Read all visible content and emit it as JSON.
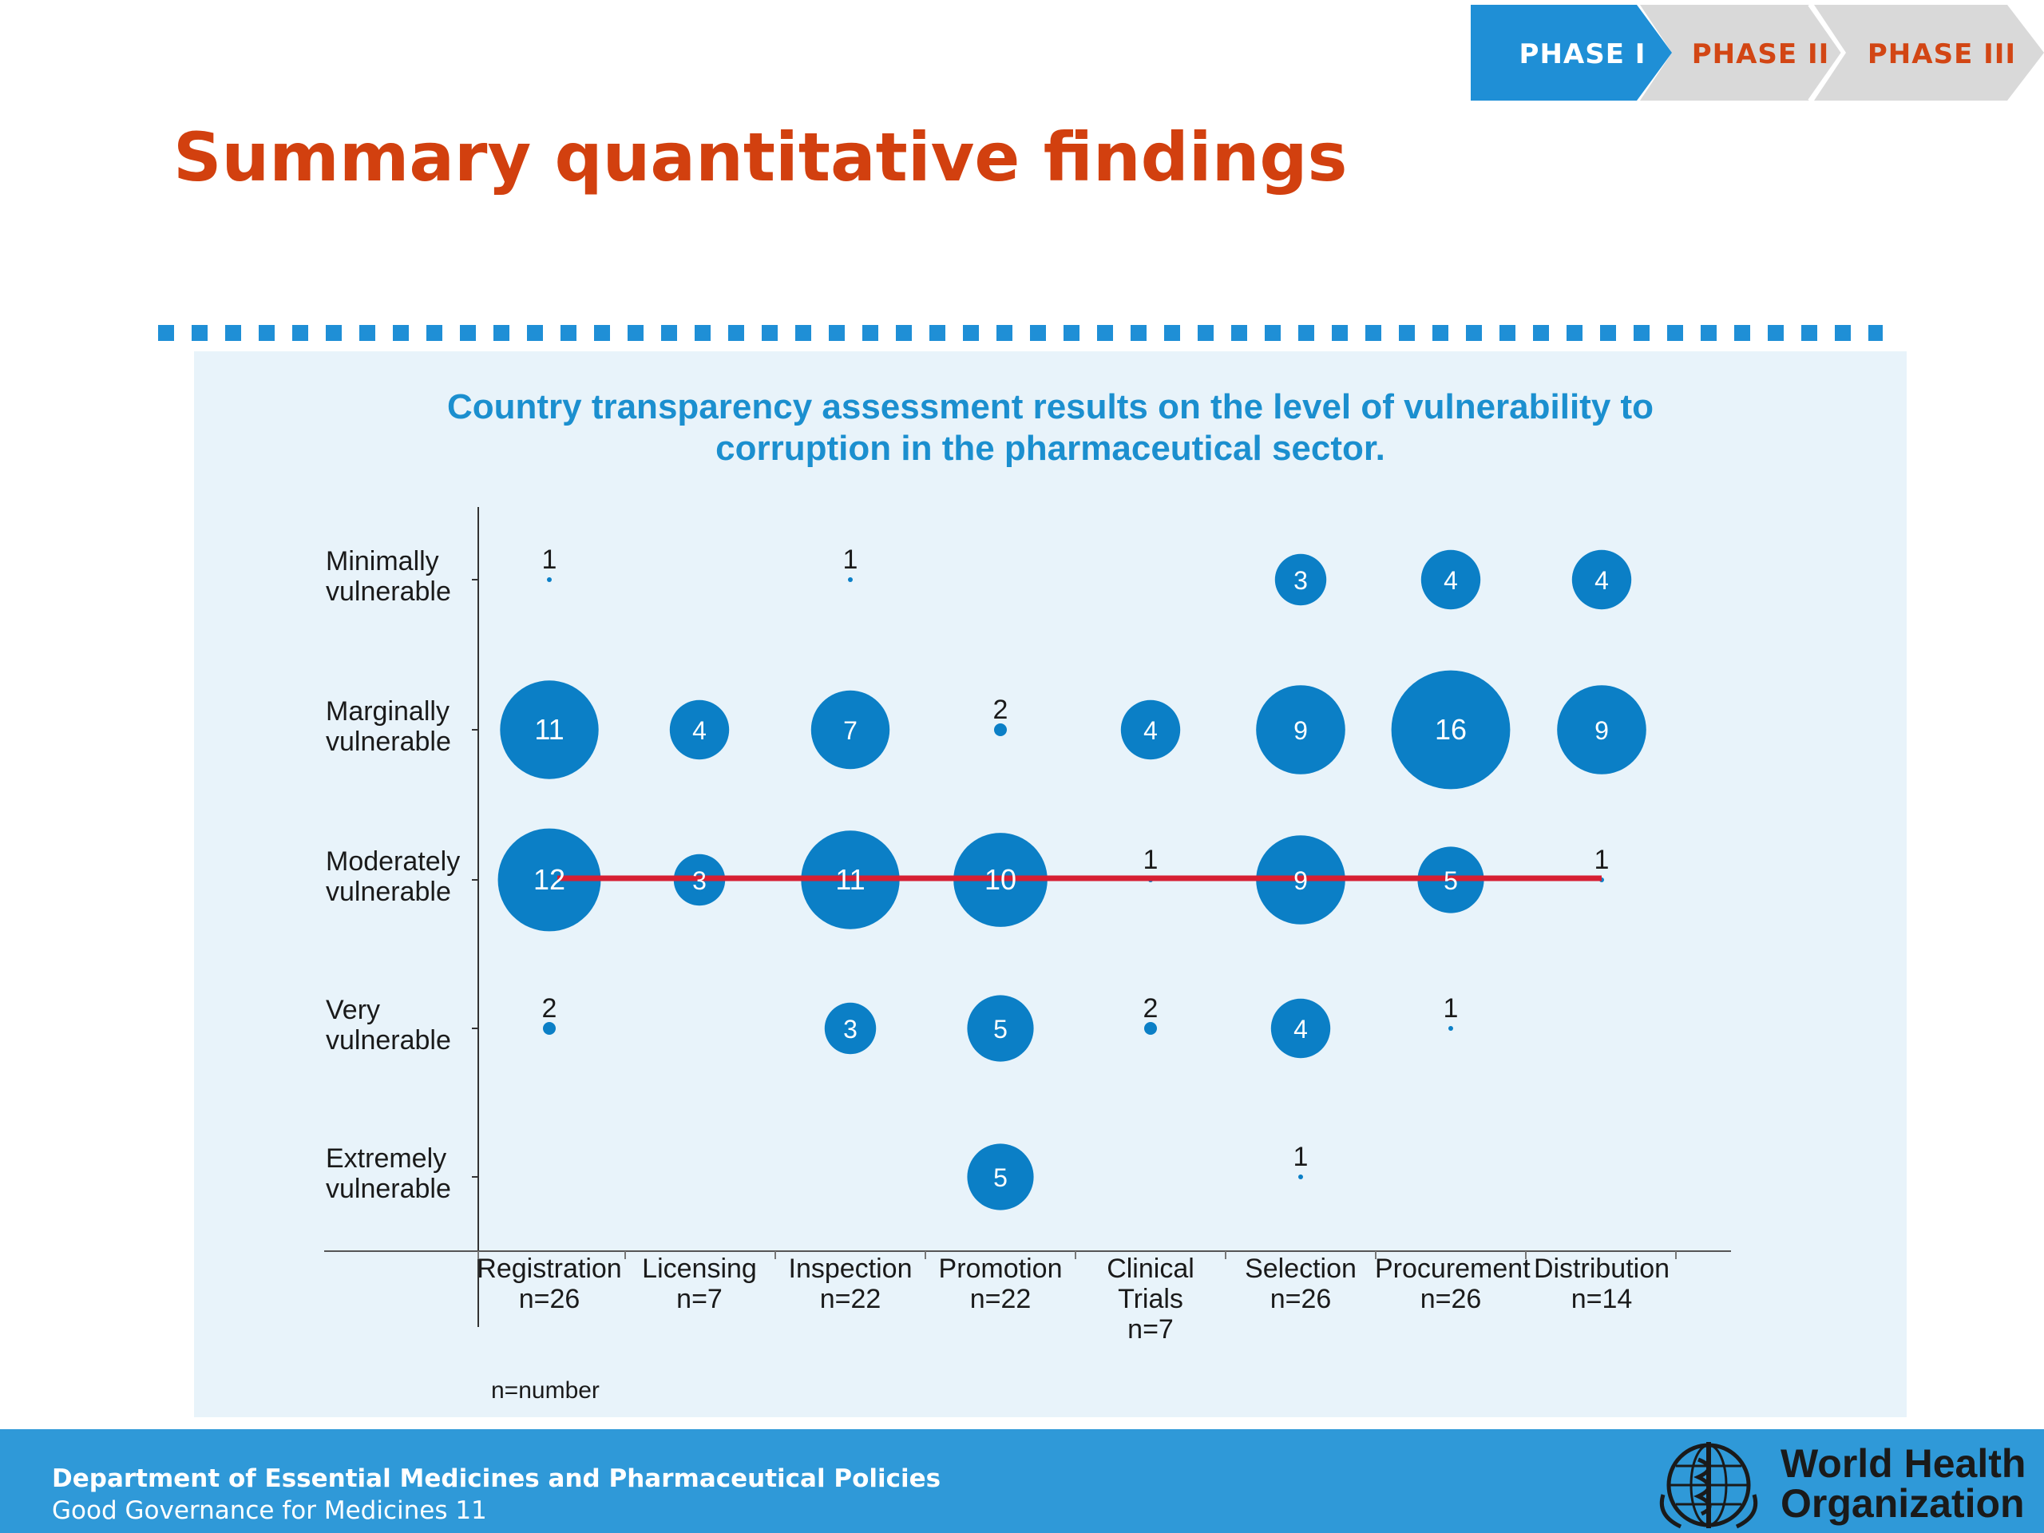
{
  "phases": [
    "PHASE I",
    "PHASE II",
    "PHASE III"
  ],
  "slide_title": "Summary quantitative findings",
  "chart_title_lines": [
    "Country transparency assessment results on the level of vulnerability to",
    "corruption in the pharmaceutical sector."
  ],
  "note": "n=number",
  "footer": {
    "department": "Department of Essential Medicines and Pharmaceutical Policies",
    "subtitle": "Good Governance for Medicines 11",
    "org_line1": "World Health",
    "org_line2": "Organization"
  },
  "colors": {
    "bubble": "#0b7fc6",
    "median_line": "#d61f33",
    "title": "#d2400f",
    "chart_title": "#1b8fcf",
    "footer": "#2f99d8"
  },
  "chart_data": {
    "type": "bubble",
    "title": "Country transparency assessment results on the level of vulnerability to corruption in the pharmaceutical sector.",
    "x_categories": [
      {
        "name": "Registration",
        "n": "n=26"
      },
      {
        "name": "Licensing",
        "n": "n=7"
      },
      {
        "name": "Inspection",
        "n": "n=22"
      },
      {
        "name": "Promotion",
        "n": "n=22"
      },
      {
        "name": "Clinical Trials",
        "n": "n=7"
      },
      {
        "name": "Selection",
        "n": "n=26"
      },
      {
        "name": "Procurement",
        "n": "n=26"
      },
      {
        "name": "Distribution",
        "n": "n=14"
      }
    ],
    "y_categories": [
      [
        "Minimally",
        "vulnerable"
      ],
      [
        "Marginally",
        "vulnerable"
      ],
      [
        "Moderately",
        "vulnerable"
      ],
      [
        "Very",
        "vulnerable"
      ],
      [
        "Extremely",
        "vulnerable"
      ]
    ],
    "values": [
      [
        1,
        11,
        12,
        2,
        0
      ],
      [
        0,
        4,
        3,
        0,
        0
      ],
      [
        1,
        7,
        11,
        3,
        0
      ],
      [
        0,
        2,
        10,
        5,
        5
      ],
      [
        0,
        4,
        1,
        2,
        0
      ],
      [
        3,
        9,
        9,
        4,
        1
      ],
      [
        4,
        16,
        5,
        1,
        0
      ],
      [
        4,
        9,
        1,
        0,
        0
      ]
    ],
    "median_line": {
      "level": "Moderately vulnerable",
      "from": "Registration",
      "to": "Distribution"
    },
    "legend": "none",
    "grid": false
  }
}
